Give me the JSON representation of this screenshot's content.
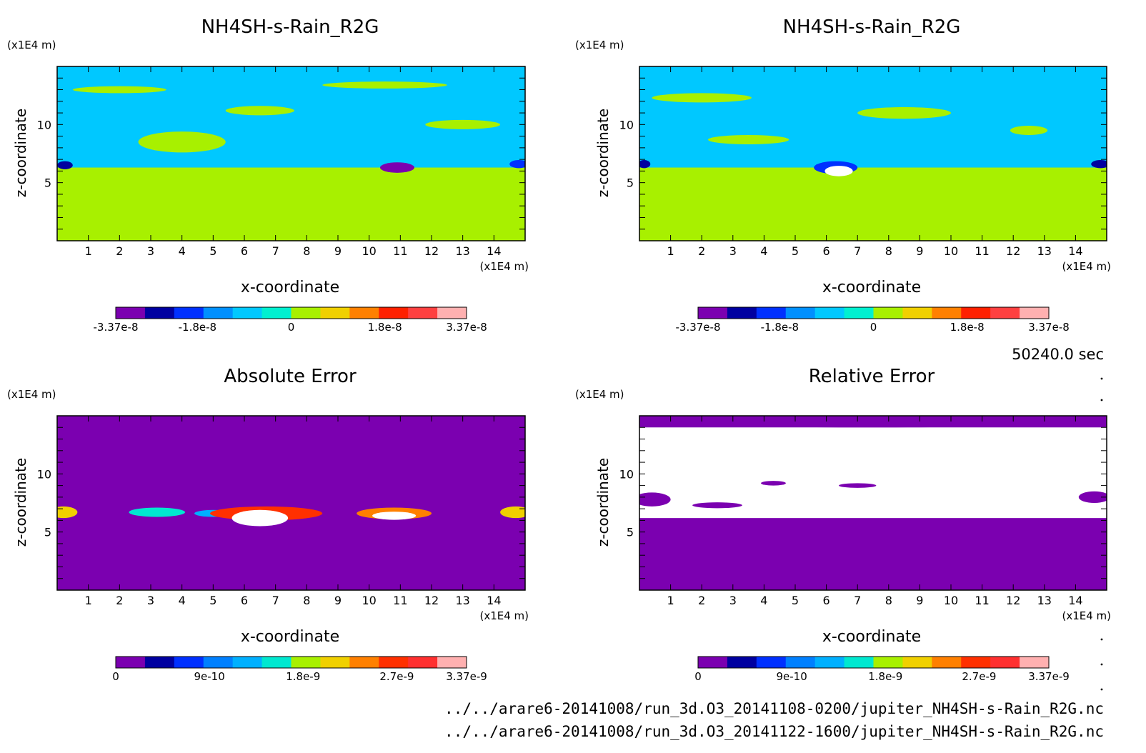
{
  "time_label": "50240.0 sec",
  "files": [
    "../../arare6-20141008/run_3d.O3_20141108-0200/jupiter_NH4SH-s-Rain_R2G.nc",
    "../../arare6-20141008/run_3d.O3_20141122-1600/jupiter_NH4SH-s-Rain_R2G.nc"
  ],
  "colors": {
    "scale_main": [
      "#7b00b0",
      "#0000a0",
      "#0030ff",
      "#0090ff",
      "#00c8ff",
      "#00f0d0",
      "#a8f000",
      "#f0d000",
      "#ff8000",
      "#ff2000",
      "#ff4040",
      "#ffb0b0"
    ],
    "scale_error": [
      "#7b00b0",
      "#0000a0",
      "#0030ff",
      "#0080ff",
      "#00b0ff",
      "#00e8d0",
      "#a8f000",
      "#f0d000",
      "#ff8000",
      "#ff3000",
      "#ff3030",
      "#ffb0b0"
    ]
  },
  "chart_data": [
    {
      "id": "tl",
      "type": "heatmap",
      "title": "NH4SH-s-Rain_R2G",
      "xlabel": "x-coordinate",
      "ylabel": "z-coordinate",
      "x_unit": "(x1E4 m)",
      "y_unit": "(x1E4 m)",
      "xlim": [
        0,
        15
      ],
      "ylim": [
        0,
        15
      ],
      "x_ticks": [
        1,
        2,
        3,
        4,
        5,
        6,
        7,
        8,
        9,
        10,
        11,
        12,
        13,
        14
      ],
      "y_ticks": [
        5,
        10
      ],
      "colorbar_labels": [
        "-3.37e-8",
        "-1.8e-8",
        "0",
        "1.8e-8",
        "3.37e-8"
      ],
      "colorbar_range": [
        -3.37e-08,
        3.37e-08
      ],
      "background_value": 0.0,
      "upper_layer_value": -6e-09,
      "layer_top_z": 6.3,
      "regions": [
        {
          "x": 0.25,
          "z": 6.5,
          "v": -2.4e-08,
          "rx": 0.25,
          "rz": 0.35
        },
        {
          "x": 10.9,
          "z": 6.3,
          "v": -3e-08,
          "rx": 0.55,
          "rz": 0.45
        },
        {
          "x": 14.8,
          "z": 6.6,
          "v": -2e-08,
          "rx": 0.3,
          "rz": 0.35
        },
        {
          "x": 4.0,
          "z": 8.5,
          "v": 0.0,
          "rx": 1.4,
          "rz": 0.9
        },
        {
          "x": 6.5,
          "z": 11.2,
          "v": 0.0,
          "rx": 1.1,
          "rz": 0.4
        },
        {
          "x": 13.0,
          "z": 10.0,
          "v": 0.0,
          "rx": 1.2,
          "rz": 0.4
        },
        {
          "x": 2.0,
          "z": 13.0,
          "v": 0.0,
          "rx": 1.5,
          "rz": 0.3
        },
        {
          "x": 10.5,
          "z": 13.4,
          "v": 0.0,
          "rx": 2.0,
          "rz": 0.3
        }
      ]
    },
    {
      "id": "tr",
      "type": "heatmap",
      "title": "NH4SH-s-Rain_R2G",
      "xlabel": "x-coordinate",
      "ylabel": "z-coordinate",
      "x_unit": "(x1E4 m)",
      "y_unit": "(x1E4 m)",
      "xlim": [
        0,
        15
      ],
      "ylim": [
        0,
        15
      ],
      "x_ticks": [
        1,
        2,
        3,
        4,
        5,
        6,
        7,
        8,
        9,
        10,
        11,
        12,
        13,
        14
      ],
      "y_ticks": [
        5,
        10
      ],
      "colorbar_labels": [
        "-3.37e-8",
        "-1.8e-8",
        "0",
        "1.8e-8",
        "3.37e-8"
      ],
      "colorbar_range": [
        -3.37e-08,
        3.37e-08
      ],
      "background_value": 0.0,
      "upper_layer_value": -6e-09,
      "layer_top_z": 6.3,
      "regions": [
        {
          "x": 0.15,
          "z": 6.6,
          "v": -2.4e-08,
          "rx": 0.2,
          "rz": 0.35
        },
        {
          "x": 6.3,
          "z": 6.3,
          "v": -2e-08,
          "rx": 0.7,
          "rz": 0.55
        },
        {
          "x": 6.4,
          "z": 6.0,
          "v": null,
          "rx": 0.45,
          "rz": 0.45
        },
        {
          "x": 14.8,
          "z": 6.6,
          "v": -2.4e-08,
          "rx": 0.3,
          "rz": 0.35
        },
        {
          "x": 3.5,
          "z": 8.7,
          "v": 0.0,
          "rx": 1.3,
          "rz": 0.4
        },
        {
          "x": 8.5,
          "z": 11.0,
          "v": 0.0,
          "rx": 1.5,
          "rz": 0.5
        },
        {
          "x": 12.5,
          "z": 9.5,
          "v": 0.0,
          "rx": 0.6,
          "rz": 0.4
        },
        {
          "x": 2.0,
          "z": 12.3,
          "v": 0.0,
          "rx": 1.6,
          "rz": 0.4
        }
      ]
    },
    {
      "id": "bl",
      "type": "heatmap",
      "title": "Absolute Error",
      "xlabel": "x-coordinate",
      "ylabel": "z-coordinate",
      "x_unit": "(x1E4 m)",
      "y_unit": "(x1E4 m)",
      "xlim": [
        0,
        15
      ],
      "ylim": [
        0,
        15
      ],
      "x_ticks": [
        1,
        2,
        3,
        4,
        5,
        6,
        7,
        8,
        9,
        10,
        11,
        12,
        13,
        14
      ],
      "y_ticks": [
        5,
        10
      ],
      "colorbar_labels": [
        "0",
        "9e-10",
        "1.8e-9",
        "2.7e-9",
        "3.37e-9"
      ],
      "colorbar_range": [
        0,
        3.37e-09
      ],
      "background_value": 0.0,
      "regions": [
        {
          "x": 0.2,
          "z": 6.7,
          "v": 2.2e-09,
          "rx": 0.45,
          "rz": 0.5
        },
        {
          "x": 3.2,
          "z": 6.7,
          "v": 1.6e-09,
          "rx": 0.9,
          "rz": 0.4
        },
        {
          "x": 5.0,
          "z": 6.6,
          "v": 1.4e-09,
          "rx": 0.6,
          "rz": 0.3
        },
        {
          "x": 6.7,
          "z": 6.6,
          "v": 2.6e-09,
          "rx": 1.8,
          "rz": 0.6
        },
        {
          "x": 6.5,
          "z": 6.2,
          "v": null,
          "rx": 0.9,
          "rz": 0.7
        },
        {
          "x": 10.8,
          "z": 6.6,
          "v": 2.4e-09,
          "rx": 1.2,
          "rz": 0.5
        },
        {
          "x": 10.8,
          "z": 6.4,
          "v": null,
          "rx": 0.7,
          "rz": 0.35
        },
        {
          "x": 14.7,
          "z": 6.7,
          "v": 2.2e-09,
          "rx": 0.5,
          "rz": 0.5
        }
      ]
    },
    {
      "id": "br",
      "type": "heatmap",
      "title": "Relative Error",
      "xlabel": "x-coordinate",
      "ylabel": "z-coordinate",
      "x_unit": "(x1E4 m)",
      "y_unit": "(x1E4 m)",
      "xlim": [
        0,
        15
      ],
      "ylim": [
        0,
        15
      ],
      "x_ticks": [
        1,
        2,
        3,
        4,
        5,
        6,
        7,
        8,
        9,
        10,
        11,
        12,
        13,
        14
      ],
      "y_ticks": [
        5,
        10
      ],
      "colorbar_labels": [
        "0",
        "9e-10",
        "1.8e-9",
        "2.7e-9",
        "3.37e-9"
      ],
      "colorbar_range": [
        0,
        3.37e-09
      ],
      "background_value": 0.0,
      "undefined_band_z": [
        6.2,
        14.0
      ],
      "regions": [
        {
          "x": 7.5,
          "z": 14.5,
          "v": 0.0,
          "rx": 7.5,
          "rz": 0.5
        },
        {
          "x": 7.0,
          "z": 9.0,
          "v": 0.0,
          "rx": 0.6,
          "rz": 0.2
        },
        {
          "x": 4.3,
          "z": 9.2,
          "v": 0.0,
          "rx": 0.4,
          "rz": 0.2
        },
        {
          "x": 0.4,
          "z": 7.8,
          "v": 0.0,
          "rx": 0.6,
          "rz": 0.6
        },
        {
          "x": 14.6,
          "z": 8.0,
          "v": 0.0,
          "rx": 0.5,
          "rz": 0.5
        },
        {
          "x": 2.5,
          "z": 7.3,
          "v": 0.0,
          "rx": 0.8,
          "rz": 0.25
        }
      ]
    }
  ]
}
